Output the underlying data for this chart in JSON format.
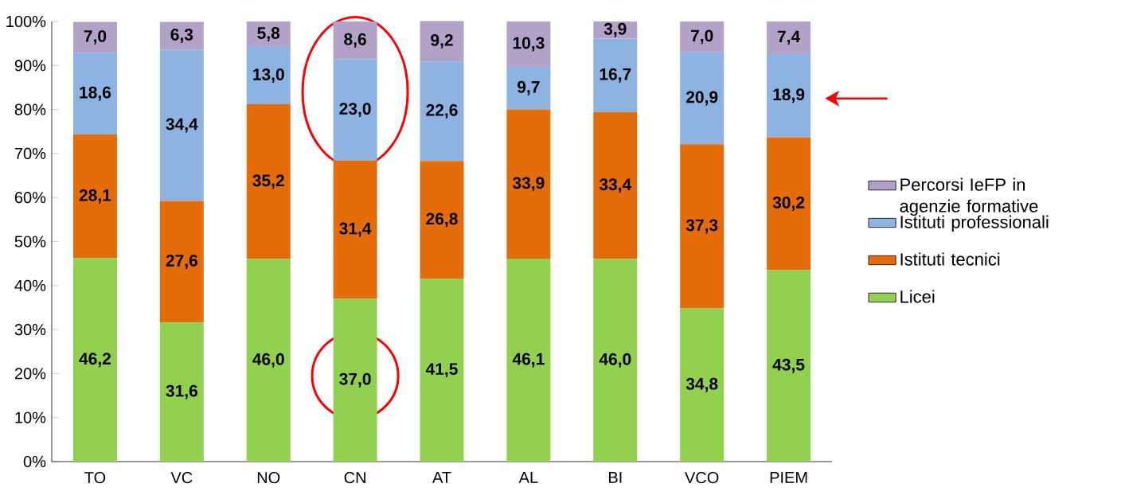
{
  "chart_data": {
    "type": "bar",
    "stacked": true,
    "categories": [
      "TO",
      "VC",
      "NO",
      "CN",
      "AT",
      "AL",
      "BI",
      "VCO",
      "PIEM"
    ],
    "series": [
      {
        "name": "Licei",
        "color": "#92d050",
        "values": [
          46.2,
          31.6,
          46.0,
          37.0,
          41.5,
          46.1,
          46.0,
          34.8,
          43.5
        ],
        "value_labels": [
          "46,2",
          "31,6",
          "46,0",
          "37,0",
          "41,5",
          "46,1",
          "46,0",
          "34,8",
          "43,5"
        ]
      },
      {
        "name": "Istituti tecnici",
        "color": "#e46c0a",
        "values": [
          28.1,
          27.6,
          35.2,
          31.4,
          26.8,
          33.9,
          33.4,
          37.3,
          30.2
        ],
        "value_labels": [
          "28,1",
          "27,6",
          "35,2",
          "31,4",
          "26,8",
          "33,9",
          "33,4",
          "37,3",
          "30,2"
        ]
      },
      {
        "name": "Istituti professionali",
        "color": "#8db3e2",
        "values": [
          18.6,
          34.4,
          13.0,
          23.0,
          22.6,
          9.7,
          16.7,
          20.9,
          18.9
        ],
        "value_labels": [
          "18,6",
          "34,4",
          "13,0",
          "23,0",
          "22,6",
          "9,7",
          "16,7",
          "20,9",
          "18,9"
        ]
      },
      {
        "name": "Percorsi IeFP in agenzie formative",
        "color": "#b3a2c7",
        "values": [
          7.0,
          6.3,
          5.8,
          8.6,
          9.2,
          10.3,
          3.9,
          7.0,
          7.4
        ],
        "value_labels": [
          "7,0",
          "6,3",
          "5,8",
          "8,6",
          "9,2",
          "10,3",
          "3,9",
          "7,0",
          "7,4"
        ]
      }
    ],
    "ylim": [
      0,
      100
    ],
    "yticks": [
      {
        "value": 0,
        "label": "0%"
      },
      {
        "value": 10,
        "label": "10%"
      },
      {
        "value": 20,
        "label": "20%"
      },
      {
        "value": 30,
        "label": "30%"
      },
      {
        "value": 40,
        "label": "40%"
      },
      {
        "value": 50,
        "label": "50%"
      },
      {
        "value": 60,
        "label": "60%"
      },
      {
        "value": 70,
        "label": "70%"
      },
      {
        "value": 80,
        "label": "80%"
      },
      {
        "value": 90,
        "label": "90%"
      },
      {
        "value": 100,
        "label": "100%"
      }
    ],
    "grid": false,
    "legend": "right"
  }
}
